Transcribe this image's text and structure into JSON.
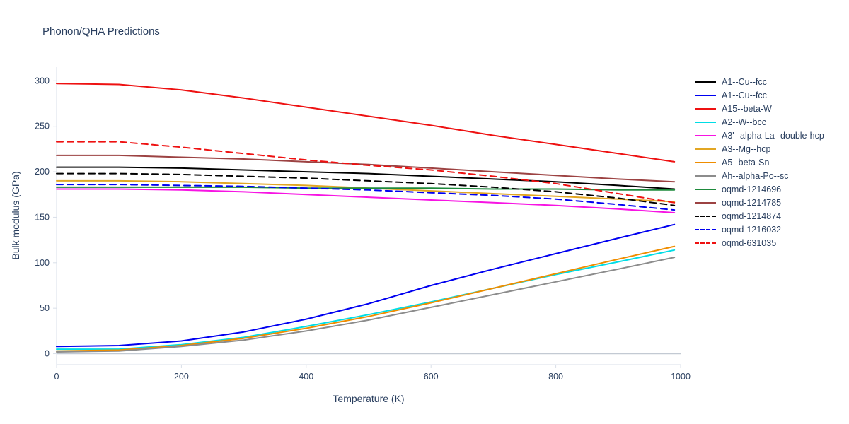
{
  "title": "Phonon/QHA Predictions",
  "axes": {
    "x": {
      "label": "Temperature (K)",
      "ticks": [
        0,
        200,
        400,
        600,
        800,
        1000
      ],
      "range": [
        0,
        1000
      ]
    },
    "y": {
      "label": "Bulk modulus (GPa)",
      "ticks": [
        0,
        50,
        100,
        150,
        200,
        250,
        300
      ],
      "range": [
        -12,
        315
      ]
    }
  },
  "colors": {
    "text": "#2a3f5f",
    "axis_line": "#d9dfe8",
    "zero_line": "#c3cad3",
    "background": "#ffffff"
  },
  "chart_data": {
    "type": "line",
    "title": "Phonon/QHA Predictions",
    "xlabel": "Temperature (K)",
    "ylabel": "Bulk modulus (GPa)",
    "xlim": [
      0,
      1000
    ],
    "ylim": [
      -12,
      315
    ],
    "grid": false,
    "legend_position": "right",
    "x": [
      0,
      100,
      200,
      300,
      400,
      500,
      600,
      700,
      800,
      900,
      990
    ],
    "series": [
      {
        "name": "A1--Cu--fcc",
        "color": "#000000",
        "dash": "solid",
        "values": [
          205,
          205,
          204,
          202,
          200,
          198,
          195,
          192,
          189,
          185,
          181
        ]
      },
      {
        "name": "A1--Cu--fcc",
        "color": "#0000f0",
        "dash": "solid",
        "values": [
          8,
          9,
          14,
          24,
          38,
          55,
          75,
          93,
          110,
          127,
          142
        ]
      },
      {
        "name": "A15--beta-W",
        "color": "#ee1111",
        "dash": "solid",
        "values": [
          297,
          296,
          290,
          281,
          271,
          261,
          251,
          240,
          230,
          220,
          211
        ]
      },
      {
        "name": "A2--W--bcc",
        "color": "#00dde5",
        "dash": "solid",
        "values": [
          5,
          5,
          10,
          18,
          30,
          43,
          57,
          72,
          87,
          101,
          114
        ]
      },
      {
        "name": "A3'--alpha-La--double-hcp",
        "color": "#f714e3",
        "dash": "solid",
        "values": [
          181,
          181,
          180,
          178,
          175,
          172,
          169,
          166,
          163,
          159,
          155
        ]
      },
      {
        "name": "A3--Mg--hcp",
        "color": "#e2a623",
        "dash": "solid",
        "values": [
          190,
          190,
          189,
          187,
          185,
          182,
          179,
          176,
          173,
          170,
          167
        ]
      },
      {
        "name": "A5--beta-Sn",
        "color": "#ef8d00",
        "dash": "solid",
        "values": [
          3,
          4,
          9,
          17,
          28,
          41,
          56,
          72,
          88,
          104,
          118
        ]
      },
      {
        "name": "Ah--alpha-Po--sc",
        "color": "#8c8c8c",
        "dash": "solid",
        "values": [
          2,
          3,
          8,
          15,
          25,
          37,
          51,
          65,
          79,
          93,
          106
        ]
      },
      {
        "name": "oqmd-1214696",
        "color": "#1e8a3c",
        "dash": "solid",
        "values": [
          183,
          183,
          183,
          183,
          182,
          182,
          182,
          181,
          181,
          180,
          180
        ]
      },
      {
        "name": "oqmd-1214785",
        "color": "#9c4242",
        "dash": "solid",
        "values": [
          218,
          218,
          216,
          214,
          211,
          208,
          204,
          200,
          196,
          192,
          189
        ]
      },
      {
        "name": "oqmd-1214874",
        "color": "#000000",
        "dash": "dash",
        "values": [
          198,
          198,
          197,
          195,
          193,
          190,
          187,
          183,
          178,
          171,
          163
        ]
      },
      {
        "name": "oqmd-1216032",
        "color": "#0000f0",
        "dash": "dash",
        "values": [
          186,
          186,
          185,
          184,
          182,
          180,
          177,
          174,
          170,
          164,
          158
        ]
      },
      {
        "name": "oqmd-631035",
        "color": "#ee1111",
        "dash": "dash",
        "values": [
          233,
          233,
          227,
          220,
          213,
          207,
          202,
          195,
          187,
          176,
          166
        ]
      }
    ]
  }
}
